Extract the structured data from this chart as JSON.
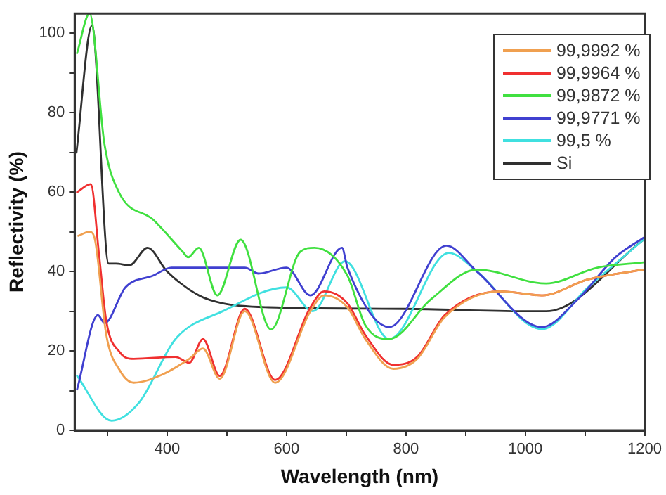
{
  "chart_data": {
    "type": "line",
    "xlabel": "Wavelength (nm)",
    "ylabel": "Reflectivity (%)",
    "xlim": [
      245,
      1200
    ],
    "ylim": [
      0,
      105
    ],
    "xticks": [
      {
        "value": 300,
        "label": null
      },
      400,
      {
        "value": 500,
        "label": null
      },
      600,
      {
        "value": 700,
        "label": null
      },
      800,
      {
        "value": 900,
        "label": null
      },
      1000,
      {
        "value": 1100,
        "label": null
      },
      1200
    ],
    "yticks": [
      0,
      {
        "value": 10,
        "label": null
      },
      20,
      {
        "value": 30,
        "label": null
      },
      40,
      {
        "value": 50,
        "label": null
      },
      60,
      {
        "value": 70,
        "label": null
      },
      80,
      {
        "value": 90,
        "label": null
      },
      100
    ],
    "legend": "top right",
    "marker": "none",
    "line_style": "solid",
    "series": [
      {
        "name": "99,9992 %",
        "color": "#f0a050",
        "x": [
          251,
          270,
          279,
          298,
          321,
          344,
          391,
          437,
          460,
          488,
          530,
          581,
          640,
          663,
          702,
          732,
          779,
          819,
          865,
          958,
          1028,
          1105,
          1198
        ],
        "values": [
          49,
          50,
          48,
          24,
          15,
          12,
          14,
          18,
          20.6,
          13,
          30,
          12,
          30,
          34,
          31,
          23,
          15.5,
          18,
          28.5,
          35,
          34,
          38,
          40.5
        ]
      },
      {
        "name": "99,9964 %",
        "color": "#f03030",
        "x": [
          249,
          272,
          286,
          298,
          321,
          344,
          414,
          437,
          460,
          488,
          530,
          581,
          640,
          663,
          702,
          732,
          779,
          819,
          865,
          958,
          1028,
          1105,
          1198
        ],
        "values": [
          60,
          62,
          44,
          27.5,
          19.6,
          18,
          18.5,
          17,
          23,
          13.7,
          30.6,
          12.7,
          31,
          35,
          32,
          24,
          16.5,
          18.5,
          29,
          35,
          34,
          38,
          40.5
        ]
      },
      {
        "name": "99,9872 %",
        "color": "#40e040",
        "x": [
          249,
          270,
          295,
          319,
          377,
          426,
          435,
          453,
          484,
          523,
          574,
          623,
          647,
          702,
          732,
          772,
          842,
          919,
          1035,
          1121,
          1198
        ],
        "values": [
          95,
          105,
          72,
          60,
          53,
          45,
          43.6,
          46,
          34,
          48,
          25.4,
          45,
          46,
          39,
          26.5,
          23,
          33,
          40.5,
          37,
          41,
          42.3
        ]
      },
      {
        "name": "99,9771 %",
        "color": "#4040d0",
        "x": [
          249,
          284,
          295,
          330,
          377,
          407,
          530,
          553,
          600,
          640,
          693,
          702,
          772,
          868,
          919,
          1028,
          1088,
          1151,
          1198
        ],
        "values": [
          10.3,
          29,
          27,
          36,
          39,
          41,
          41,
          39.5,
          41,
          34,
          46,
          41,
          26,
          46.5,
          40,
          26,
          33,
          43.6,
          48.5
        ]
      },
      {
        "name": "99,5 %",
        "color": "#40e0e0",
        "x": [
          249,
          307,
          353,
          414,
          493,
          600,
          644,
          698,
          772,
          872,
          919,
          1028,
          1105,
          1198
        ],
        "values": [
          13.7,
          2.4,
          7,
          23,
          30,
          36,
          30,
          42.6,
          23,
          44.7,
          40,
          25.5,
          36,
          48
        ]
      },
      {
        "name": "Si",
        "color": "#303030",
        "x": [
          248,
          274,
          302,
          314,
          337,
          367,
          400,
          453,
          493,
          570,
          800,
          1000,
          1035,
          1198
        ],
        "values": [
          70,
          102,
          42,
          42,
          41.6,
          46,
          40,
          34,
          32,
          31,
          30.6,
          30,
          30,
          48
        ]
      }
    ]
  }
}
